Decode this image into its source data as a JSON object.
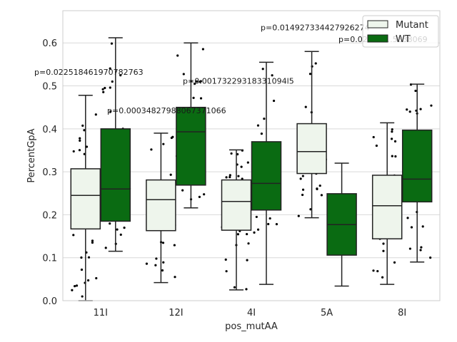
{
  "chart_data": {
    "type": "box",
    "xlabel": "pos_mutAA",
    "ylabel": "PercentGpA",
    "ylim": [
      0.0,
      0.675
    ],
    "yticks": [
      0.0,
      0.1,
      0.2,
      0.3,
      0.4,
      0.5,
      0.6
    ],
    "ytick_labels": [
      "0.0",
      "0.1",
      "0.2",
      "0.3",
      "0.4",
      "0.5",
      "0.6"
    ],
    "categories": [
      "11I",
      "12I",
      "4I",
      "5A",
      "8I"
    ],
    "grid": true,
    "legend": {
      "placement": "top-right",
      "entries": [
        {
          "name": "Mutant",
          "color": "#eef5ec"
        },
        {
          "name": "WT",
          "color": "#0a6b12"
        }
      ]
    },
    "series": [
      {
        "name": "Mutant",
        "color": "#eef5ec",
        "boxes": [
          {
            "whislo": 0.0,
            "q1": 0.167,
            "med": 0.245,
            "q3": 0.307,
            "whishi": 0.478
          },
          {
            "whislo": 0.042,
            "q1": 0.163,
            "med": 0.235,
            "q3": 0.281,
            "whishi": 0.39
          },
          {
            "whislo": 0.025,
            "q1": 0.164,
            "med": 0.231,
            "q3": 0.281,
            "whishi": 0.351
          },
          {
            "whislo": 0.193,
            "q1": 0.296,
            "med": 0.347,
            "q3": 0.412,
            "whishi": 0.58
          },
          {
            "whislo": 0.038,
            "q1": 0.144,
            "med": 0.221,
            "q3": 0.292,
            "whishi": 0.414
          }
        ]
      },
      {
        "name": "WT",
        "color": "#0a6b12",
        "boxes": [
          {
            "whislo": 0.115,
            "q1": 0.185,
            "med": 0.26,
            "q3": 0.4,
            "whishi": 0.612
          },
          {
            "whislo": 0.216,
            "q1": 0.269,
            "med": 0.393,
            "q3": 0.45,
            "whishi": 0.6
          },
          {
            "whislo": 0.038,
            "q1": 0.211,
            "med": 0.273,
            "q3": 0.37,
            "whishi": 0.555
          },
          {
            "whislo": 0.034,
            "q1": 0.106,
            "med": 0.177,
            "q3": 0.249,
            "whishi": 0.32
          },
          {
            "whislo": 0.09,
            "q1": 0.23,
            "med": 0.283,
            "q3": 0.397,
            "whishi": 0.504
          }
        ]
      }
    ],
    "annotations": [
      {
        "category": "11I",
        "text": "p=0.022518461970782763",
        "y": 0.532
      },
      {
        "category": "12I",
        "text": "p=0.00034827988067371066",
        "y": 0.443
      },
      {
        "category": "4I",
        "text": "p=0.00173229318331094l5",
        "y": 0.512
      },
      {
        "category": "5A",
        "text": "p=0.014927334427926274",
        "y": 0.636
      },
      {
        "category": "8I",
        "text": "p=0.02...60...5838069",
        "y": 0.609
      }
    ]
  }
}
